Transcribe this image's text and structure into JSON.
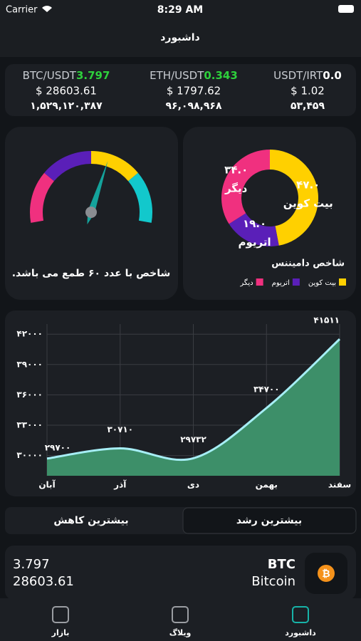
{
  "status_bar": {
    "carrier": "Carrier",
    "time": "8:29 AM"
  },
  "header": {
    "title": "داشبورد"
  },
  "tickers": [
    {
      "pair": "BTC/USDT",
      "change": "3.797",
      "change_color": "#2ed03c",
      "usd": "$ 28603.61",
      "irt": "۱,۵۲۹,۱۲۰,۳۸۷"
    },
    {
      "pair": "ETH/USDT",
      "change": "0.343",
      "change_color": "#2ed03c",
      "usd": "$ 1797.62",
      "irt": "۹۶,۰۹۸,۹۶۸"
    },
    {
      "pair": "USDT/IRT",
      "change": "0.0",
      "change_color": "#ffffff",
      "usd": "$ 1.02",
      "irt": "۵۳,۴۵۹"
    }
  ],
  "gauge": {
    "value": 60,
    "range": [
      0,
      100
    ],
    "colors": [
      "#f0307f",
      "#5a1fb8",
      "#ffd000",
      "#12c8cc"
    ],
    "caption": "شاخص با عدد ۶۰ طمع می باشد."
  },
  "dominance": {
    "type": "pie",
    "title": "شاخص دامیننس",
    "categories": [
      "بیت کوین",
      "اتریوم",
      "دیگر"
    ],
    "values": [
      47,
      19,
      34
    ],
    "value_labels": [
      "۴۷.۰",
      "۱۹.۰",
      "۳۴.۰"
    ],
    "colors": [
      "#ffd000",
      "#5a1fb8",
      "#f0307f"
    ]
  },
  "price_chart": {
    "type": "area",
    "categories": [
      "آبان",
      "آذر",
      "دی",
      "بهمن",
      "سفند"
    ],
    "values": [
      29700,
      30710,
      29732,
      34700,
      41511
    ],
    "value_labels": [
      "۲۹۷۰۰",
      "۳۰۷۱۰",
      "۲۹۷۳۲",
      "۳۴۷۰۰",
      "۴۱۵۱۱"
    ],
    "ylim": [
      28000,
      43000
    ],
    "yticks": [
      {
        "value": 30000,
        "label": "۳۰۰۰۰"
      },
      {
        "value": 33000,
        "label": "۳۳۰۰۰"
      },
      {
        "value": 36000,
        "label": "۳۶۰۰۰"
      },
      {
        "value": 39000,
        "label": "۳۹۰۰۰"
      },
      {
        "value": 42000,
        "label": "۴۲۰۰۰"
      }
    ],
    "grid": true,
    "line_color": "#a6eef5",
    "fill_color": "#3d8f69"
  },
  "tabs": [
    "بیشترین رشد",
    "بیشترین کاهش"
  ],
  "active_tab": 0,
  "list": [
    {
      "symbol": "BTC",
      "name": "Bitcoin",
      "change": "3.797",
      "price": "28603.61"
    }
  ],
  "nav": [
    {
      "label": "داشبورد",
      "active": true
    },
    {
      "label": "ویلاگ",
      "active": false
    },
    {
      "label": "بازار",
      "active": false
    }
  ]
}
